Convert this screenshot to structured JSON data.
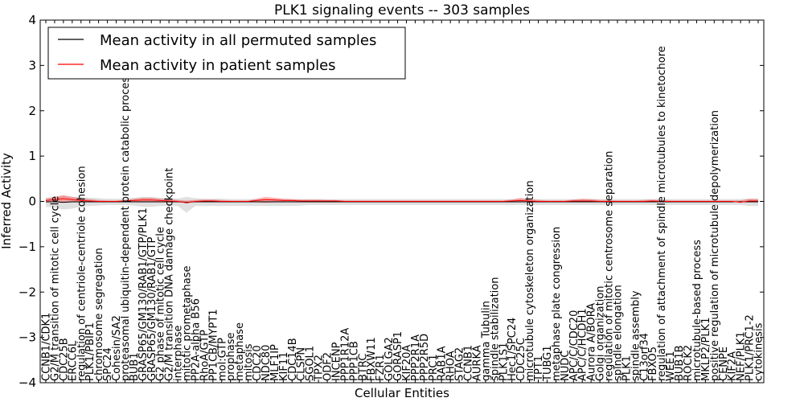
{
  "chart_data": {
    "type": "line",
    "title": "PLK1 signaling events -- 303 samples",
    "xlabel": "Cellular Entities",
    "ylabel": "Inferred Activity",
    "ylim": [
      -4,
      4
    ],
    "yticks": [
      -4,
      -3,
      -2,
      -1,
      0,
      1,
      2,
      3,
      4
    ],
    "legend": {
      "placement": "top-left"
    },
    "categories": [
      "CCNB1/CDK1",
      "G2/M transition of mitotic cell cycle",
      "CDC25B",
      "ERCC6L",
      "regulation of centriole-centriole cohesion",
      "PLK1/PBIP1",
      "chromosome segregation",
      "SPC24",
      "Cohesin/SA2",
      "proteasomal ubiquitin-dependent protein catabolic process",
      "BUB1",
      "GRASP65/GM130/RAB1/GTP/PLK1",
      "GRASP65/GM130/RAB1/GTP",
      "G2 phase of mitotic cell cycle",
      "G2/M transition DNA damage checkpoint",
      "interphase",
      "mitotic prometaphase",
      "PP2A-alpha B56",
      "RhoA/GTP",
      "PP1CB/MYPT1",
      "mol:GTP",
      "prophase",
      "metaphase",
      "mitosis",
      "CDC20",
      "NDC80",
      "MLF1IP",
      "KIF11",
      "CDC14B",
      "CLSPN",
      "SGOL1",
      "TPX2",
      "ODF2",
      "INCENP",
      "PPP1R12A",
      "PPP1CB",
      "BTRC",
      "FBXW11",
      "FZR1",
      "GOLGA2",
      "GORASP1",
      "KIF20A",
      "PPP2R1A",
      "PPP2R5D",
      "PRC1",
      "RAB1A",
      "RHOA",
      "STAG2",
      "CCNB1",
      "AURKA",
      "gamma Tubulin",
      "spindle stabilization",
      "PLK1S1",
      "Hec1/SPC24",
      "CDC25C",
      "microtubule cytoskeleton organization",
      "TPT1",
      "TUBG1",
      "metaphase plate congression",
      "NUDC",
      "APC/C/CDC20",
      "APC/C/HCDH1",
      "Aurora A/BORA",
      "Golgi organization",
      "regulation of mitotic centrosome separation",
      "spindle elongation",
      "PLK1",
      "spindle assembly",
      "C13orf34",
      "FBXO5",
      "regulation of attachment of spindle microtubules to kinetochore",
      "WEE1",
      "BUB1B",
      "ROCK2",
      "microtubule-based process",
      "MKLP2/PLK1",
      "positive regulation of microtubule depolymerization",
      "CENPE",
      "KIF2A",
      "NEF/PLK1",
      "PLK1/PRC1-2",
      "cytokinesis"
    ],
    "series": [
      {
        "name": "Mean activity in all permuted samples",
        "color": "#000000",
        "values": [
          -0.01,
          -0.01,
          -0.02,
          -0.01,
          -0.01,
          -0.01,
          -0.01,
          -0.01,
          -0.01,
          -0.01,
          -0.01,
          -0.01,
          -0.01,
          -0.01,
          -0.01,
          -0.01,
          -0.02,
          -0.01,
          -0.01,
          -0.01,
          -0.01,
          -0.01,
          -0.01,
          -0.01,
          -0.01,
          -0.01,
          -0.01,
          -0.01,
          -0.01,
          -0.01,
          -0.01,
          -0.01,
          -0.01,
          -0.01,
          -0.01,
          -0.01,
          -0.01,
          -0.01,
          -0.01,
          -0.01,
          -0.01,
          -0.01,
          -0.01,
          -0.01,
          -0.01,
          -0.01,
          -0.01,
          -0.01,
          -0.01,
          -0.01,
          -0.01,
          -0.01,
          -0.01,
          -0.01,
          -0.01,
          -0.01,
          -0.01,
          -0.01,
          -0.01,
          -0.01,
          -0.01,
          -0.01,
          -0.01,
          -0.01,
          -0.01,
          -0.01,
          -0.01,
          -0.01,
          -0.01,
          -0.01,
          -0.01,
          -0.01,
          -0.01,
          -0.01,
          -0.01,
          -0.01,
          -0.01,
          -0.01,
          -0.01,
          -0.01,
          -0.01,
          -0.01
        ],
        "band_low": [
          -0.12,
          -0.14,
          -0.18,
          -0.16,
          -0.12,
          -0.1,
          -0.09,
          -0.08,
          -0.08,
          -0.08,
          -0.09,
          -0.12,
          -0.12,
          -0.1,
          -0.1,
          -0.1,
          -0.25,
          -0.1,
          -0.1,
          -0.1,
          -0.1,
          -0.1,
          -0.1,
          -0.1,
          -0.1,
          -0.1,
          -0.1,
          -0.1,
          -0.1,
          -0.09,
          -0.08,
          -0.08,
          -0.08,
          -0.08,
          -0.08,
          -0.08,
          -0.08,
          -0.08,
          -0.08,
          -0.08,
          -0.08,
          -0.08,
          -0.08,
          -0.08,
          -0.08,
          -0.08,
          -0.08,
          -0.08,
          -0.08,
          -0.08,
          -0.08,
          -0.08,
          -0.08,
          -0.08,
          -0.08,
          -0.08,
          -0.08,
          -0.08,
          -0.08,
          -0.08,
          -0.08,
          -0.08,
          -0.08,
          -0.08,
          -0.08,
          -0.08,
          -0.08,
          -0.08,
          -0.08,
          -0.08,
          -0.08,
          -0.08,
          -0.08,
          -0.08,
          -0.08,
          -0.08,
          -0.08,
          -0.08,
          -0.08,
          -0.08,
          -0.1,
          -0.1
        ],
        "band_high": [
          0.08,
          0.1,
          0.12,
          0.1,
          0.1,
          0.08,
          0.07,
          0.06,
          0.06,
          0.06,
          0.08,
          0.1,
          0.1,
          0.08,
          0.08,
          0.06,
          0.1,
          0.07,
          0.06,
          0.06,
          0.06,
          0.05,
          0.05,
          0.05,
          0.05,
          0.05,
          0.05,
          0.05,
          0.05,
          0.05,
          0.05,
          0.05,
          0.05,
          0.05,
          0.05,
          0.05,
          0.05,
          0.05,
          0.05,
          0.05,
          0.05,
          0.05,
          0.05,
          0.05,
          0.05,
          0.05,
          0.05,
          0.05,
          0.05,
          0.05,
          0.05,
          0.05,
          0.05,
          0.05,
          0.05,
          0.05,
          0.05,
          0.05,
          0.05,
          0.05,
          0.05,
          0.05,
          0.05,
          0.05,
          0.05,
          0.05,
          0.05,
          0.05,
          0.05,
          0.05,
          0.05,
          0.05,
          0.05,
          0.05,
          0.05,
          0.05,
          0.05,
          0.05,
          0.05,
          0.05,
          0.06,
          0.06
        ]
      },
      {
        "name": "Mean activity in patient samples",
        "color": "#ff0000",
        "values": [
          0.02,
          0.04,
          0.06,
          0.04,
          0.02,
          0.01,
          0.0,
          0.0,
          0.0,
          0.01,
          0.02,
          0.03,
          0.03,
          0.02,
          0.01,
          0.0,
          -0.03,
          0.0,
          0.01,
          0.01,
          0.0,
          0.0,
          0.0,
          0.0,
          0.02,
          0.04,
          0.03,
          0.02,
          0.02,
          0.01,
          0.01,
          0.01,
          0.01,
          0.01,
          0.0,
          0.0,
          0.0,
          0.0,
          0.0,
          0.0,
          0.0,
          0.0,
          0.0,
          0.0,
          0.0,
          0.0,
          0.0,
          0.0,
          0.0,
          0.0,
          0.0,
          0.0,
          0.0,
          0.01,
          0.02,
          0.01,
          0.0,
          0.0,
          0.0,
          0.0,
          0.01,
          0.01,
          0.01,
          0.0,
          0.0,
          0.0,
          0.0,
          0.0,
          0.0,
          0.01,
          0.0,
          0.0,
          0.0,
          0.0,
          0.0,
          0.0,
          0.0,
          0.0,
          0.0,
          -0.02,
          0.01,
          0.01
        ],
        "band_low": [
          -0.02,
          -0.02,
          -0.03,
          -0.02,
          -0.02,
          -0.02,
          -0.01,
          -0.01,
          -0.01,
          -0.01,
          -0.02,
          -0.02,
          -0.02,
          -0.02,
          -0.02,
          -0.01,
          -0.03,
          -0.01,
          -0.01,
          -0.01,
          -0.01,
          -0.01,
          -0.01,
          -0.01,
          -0.02,
          -0.03,
          -0.02,
          -0.02,
          -0.01,
          -0.01,
          -0.01,
          -0.01,
          -0.01,
          -0.01,
          -0.01,
          -0.01,
          -0.01,
          -0.01,
          -0.01,
          -0.01,
          -0.01,
          -0.01,
          -0.01,
          -0.01,
          -0.01,
          -0.01,
          -0.01,
          -0.01,
          -0.01,
          -0.01,
          -0.01,
          -0.01,
          -0.01,
          -0.01,
          -0.02,
          -0.01,
          -0.01,
          -0.01,
          -0.01,
          -0.01,
          -0.01,
          -0.02,
          -0.01,
          -0.01,
          -0.01,
          -0.01,
          -0.01,
          -0.01,
          -0.01,
          -0.01,
          -0.01,
          -0.01,
          -0.01,
          -0.01,
          -0.01,
          -0.01,
          -0.01,
          -0.01,
          -0.01,
          -0.02,
          -0.02,
          -0.02
        ],
        "band_high": [
          0.06,
          0.1,
          0.14,
          0.1,
          0.07,
          0.05,
          0.03,
          0.02,
          0.02,
          0.03,
          0.06,
          0.08,
          0.08,
          0.06,
          0.05,
          0.03,
          0.02,
          0.03,
          0.04,
          0.04,
          0.03,
          0.02,
          0.02,
          0.02,
          0.06,
          0.1,
          0.08,
          0.06,
          0.05,
          0.04,
          0.04,
          0.04,
          0.03,
          0.03,
          0.02,
          0.02,
          0.02,
          0.02,
          0.02,
          0.02,
          0.02,
          0.02,
          0.02,
          0.02,
          0.02,
          0.02,
          0.02,
          0.02,
          0.02,
          0.02,
          0.02,
          0.02,
          0.02,
          0.04,
          0.08,
          0.05,
          0.03,
          0.02,
          0.02,
          0.02,
          0.04,
          0.06,
          0.05,
          0.03,
          0.03,
          0.02,
          0.02,
          0.02,
          0.03,
          0.04,
          0.03,
          0.02,
          0.02,
          0.02,
          0.02,
          0.02,
          0.02,
          0.02,
          0.02,
          0.02,
          0.06,
          0.05
        ]
      }
    ]
  }
}
